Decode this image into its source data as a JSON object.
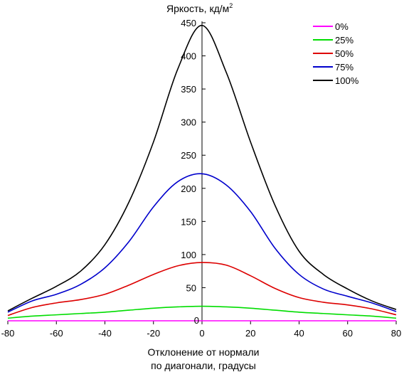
{
  "chart_data": {
    "type": "line",
    "title": "",
    "ylabel_main": "Яркость, кд/м",
    "ylabel_sup": "2",
    "xlabel_line1": "Отклонение от нормали",
    "xlabel_line2": "по диагонали, градусы",
    "xlim": [
      -80,
      80
    ],
    "ylim": [
      0,
      450
    ],
    "xticks": [
      -80,
      -60,
      -40,
      -20,
      0,
      20,
      40,
      60,
      80
    ],
    "yticks": [
      50,
      100,
      150,
      200,
      250,
      300,
      350,
      400,
      450
    ],
    "grid": false,
    "legend_position": "top-right",
    "x": [
      -80,
      -70,
      -60,
      -50,
      -40,
      -30,
      -20,
      -10,
      0,
      10,
      20,
      30,
      40,
      50,
      60,
      70,
      80
    ],
    "series": [
      {
        "name": "0%",
        "color": "#ff00ff",
        "values": [
          0,
          0,
          0,
          0,
          0,
          0,
          0,
          0,
          0,
          0,
          0,
          0,
          0,
          0,
          0,
          0,
          0
        ]
      },
      {
        "name": "25%",
        "color": "#00dd00",
        "values": [
          4,
          7,
          9,
          11,
          13,
          16,
          19,
          21,
          22,
          21,
          19,
          16,
          13,
          11,
          9,
          7,
          4
        ]
      },
      {
        "name": "50%",
        "color": "#dd0000",
        "values": [
          8,
          20,
          27,
          32,
          40,
          54,
          70,
          83,
          88,
          84,
          68,
          49,
          35,
          28,
          24,
          18,
          9
        ]
      },
      {
        "name": "75%",
        "color": "#0000cc",
        "values": [
          13,
          30,
          40,
          55,
          80,
          120,
          172,
          210,
          222,
          205,
          165,
          110,
          70,
          48,
          37,
          27,
          14
        ]
      },
      {
        "name": "100%",
        "color": "#000000",
        "values": [
          15,
          34,
          52,
          75,
          115,
          180,
          270,
          380,
          446,
          375,
          270,
          175,
          105,
          70,
          48,
          30,
          17
        ]
      }
    ]
  }
}
